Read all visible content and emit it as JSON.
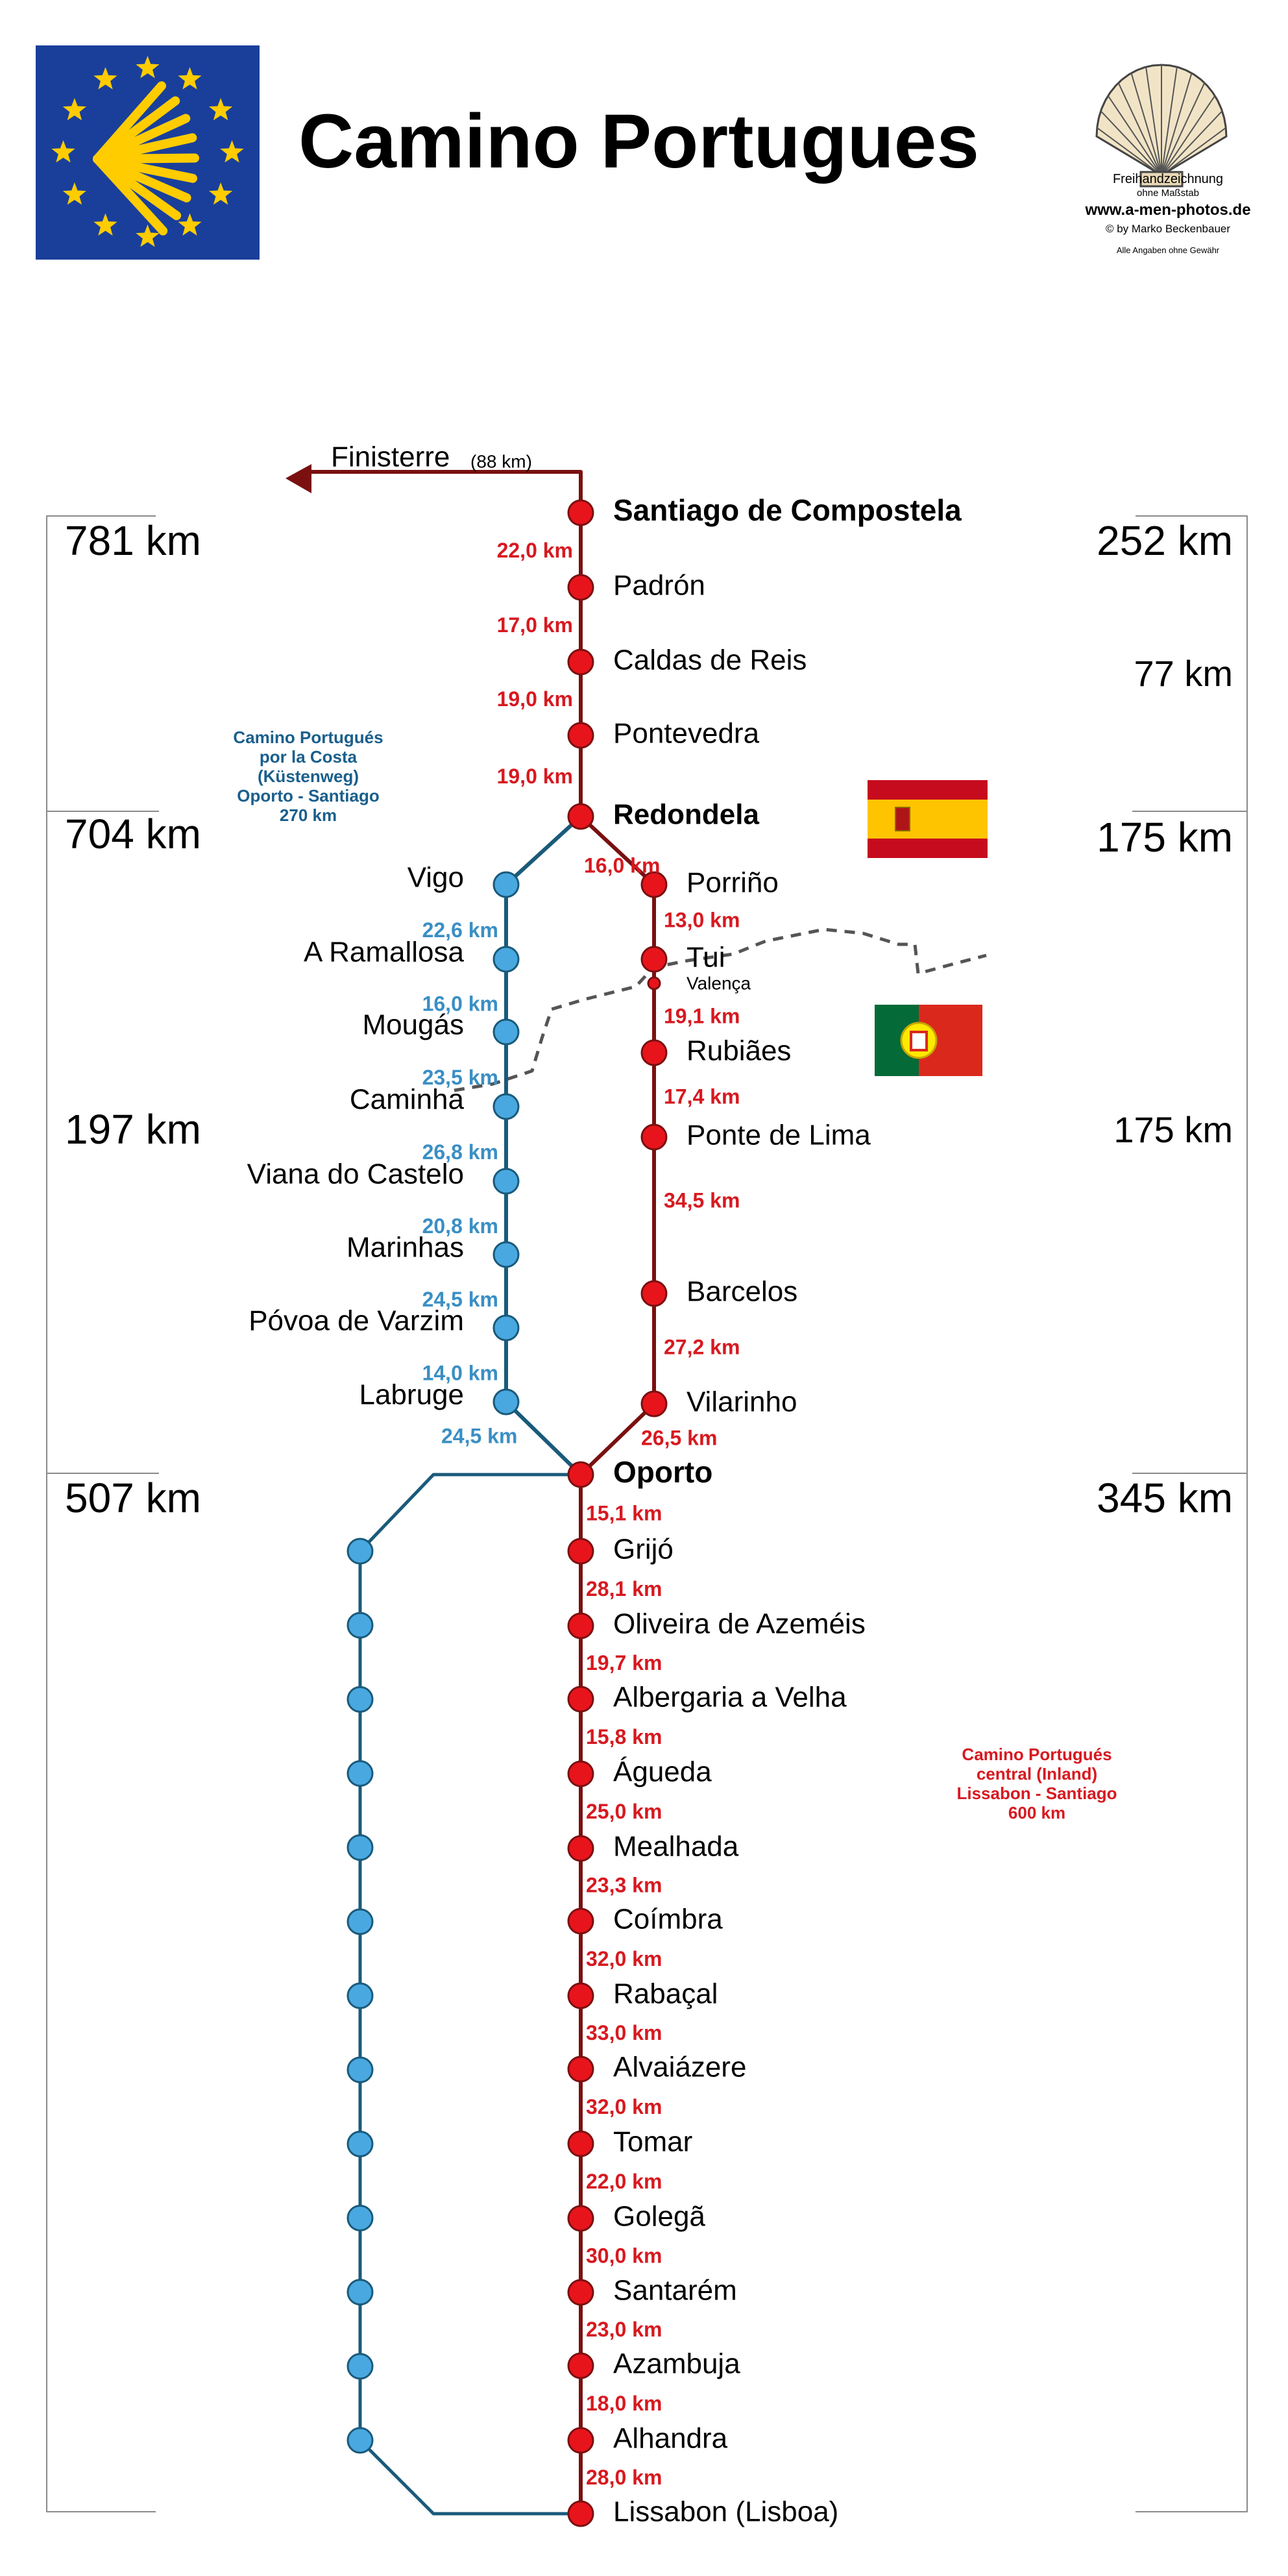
{
  "title": "Camino Portugues",
  "credits": {
    "line1": "Freihandzeichnung",
    "line2": "ohne Maßstab",
    "website": "www.a-men-photos.de",
    "author": "© by Marko Beckenbauer",
    "disclaimer": "Alle Angaben ohne Gewähr"
  },
  "finisterre": {
    "label": "Finisterre",
    "distance": "(88 km)"
  },
  "colors": {
    "central": "#e8141c",
    "central_line": "#7a1010",
    "coastal": "#4aa8e0",
    "coastal_line": "#1a5a7a",
    "central_text": "#d71920",
    "coastal_text": "#3a8fc4",
    "coastal_info": "#1a5f8c",
    "eu_blue": "#1a3f9a",
    "eu_yellow": "#ffcc00"
  },
  "route_info": {
    "coastal": [
      "Camino Portugués",
      "por la Costa",
      "(Küstenweg)",
      "Oporto - Santiago",
      "270 km"
    ],
    "central": [
      "Camino Portugués",
      "central (Inland)",
      "Lissabon - Santiago",
      "600 km"
    ]
  },
  "totals": {
    "left": [
      "781 km",
      "704 km",
      "197 km",
      "507 km"
    ],
    "right": [
      "252 km",
      "77 km",
      "175 km",
      "175 km",
      "345 km"
    ]
  },
  "upper_main": {
    "stops": [
      "Santiago de Compostela",
      "Padrón",
      "Caldas de Reis",
      "Pontevedra",
      "Redondela"
    ],
    "bold": [
      true,
      false,
      false,
      false,
      true
    ],
    "distances": [
      "22,0 km",
      "17,0 km",
      "19,0 km",
      "19,0 km"
    ]
  },
  "central_north": {
    "stops": [
      "Porriño",
      "Tui",
      "Rubiães",
      "Ponte de Lima",
      "Barcelos",
      "Vilarinho"
    ],
    "distances": [
      "13,0 km",
      "19,1 km",
      "17,4 km",
      "34,5 km",
      "27,2 km"
    ],
    "from_redondela": "16,0 km",
    "to_oporto": "26,5 km",
    "valenca": "Valença"
  },
  "coastal": {
    "stops": [
      "Vigo",
      "A Ramallosa",
      "Mougás",
      "Caminha",
      "Viana do Castelo",
      "Marinhas",
      "Póvoa de Varzim",
      "Labruge"
    ],
    "distances": [
      "22,6 km",
      "16,0 km",
      "23,5 km",
      "26,8 km",
      "20,8 km",
      "24,5 km",
      "14,0 km"
    ],
    "to_oporto": "24,5 km"
  },
  "south": {
    "stops": [
      "Oporto",
      "Grijó",
      "Oliveira de Azeméis",
      "Albergaria a Velha",
      "Águeda",
      "Mealhada",
      "Coímbra",
      "Rabaçal",
      "Alvaiázere",
      "Tomar",
      "Golegã",
      "Santarém",
      "Azambuja",
      "Alhandra",
      "Lissabon (Lisboa)"
    ],
    "bold": [
      true,
      false,
      false,
      false,
      false,
      false,
      false,
      false,
      false,
      false,
      false,
      false,
      false,
      false,
      false
    ],
    "distances": [
      "15,1 km",
      "28,1 km",
      "19,7 km",
      "15,8 km",
      "25,0 km",
      "23,3 km",
      "32,0 km",
      "33,0 km",
      "32,0 km",
      "22,0 km",
      "30,0 km",
      "23,0 km",
      "18,0 km",
      "28,0 km"
    ],
    "coastal_dot_count": 13
  }
}
